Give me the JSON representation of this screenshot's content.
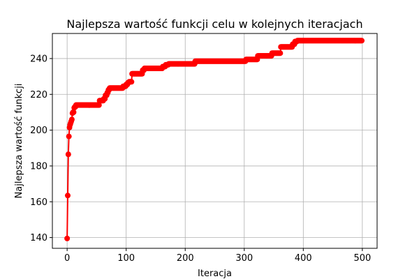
{
  "chart_data": {
    "type": "line",
    "title": "Najlepsza wartość funkcji celu w kolejnych iteracjach",
    "xlabel": "Iteracja",
    "ylabel": "Najlepsza wartość funkcji",
    "xlim": [
      -25,
      525
    ],
    "ylim": [
      134,
      254
    ],
    "xticks": [
      0,
      100,
      200,
      300,
      400,
      500
    ],
    "yticks": [
      140,
      160,
      180,
      200,
      220,
      240
    ],
    "grid": true,
    "line_color": "#ff0000",
    "marker": "circle",
    "steps": [
      [
        0,
        139.5
      ],
      [
        1,
        163.5
      ],
      [
        2,
        186.5
      ],
      [
        3,
        196.5
      ],
      [
        4,
        201.5
      ],
      [
        5,
        203.0
      ],
      [
        6,
        204.0
      ],
      [
        7,
        205.0
      ],
      [
        8,
        206.0
      ],
      [
        9,
        209.5
      ],
      [
        10,
        210.0
      ],
      [
        12,
        212.5
      ],
      [
        13,
        213.0
      ],
      [
        15,
        214.0
      ],
      [
        55,
        216.5
      ],
      [
        62,
        217.5
      ],
      [
        65,
        219.5
      ],
      [
        68,
        221.0
      ],
      [
        70,
        222.5
      ],
      [
        72,
        223.5
      ],
      [
        95,
        224.5
      ],
      [
        100,
        225.5
      ],
      [
        103,
        226.5
      ],
      [
        105,
        227.0
      ],
      [
        110,
        231.5
      ],
      [
        128,
        233.5
      ],
      [
        131,
        234.5
      ],
      [
        162,
        235.5
      ],
      [
        167,
        236.5
      ],
      [
        172,
        237.0
      ],
      [
        217,
        238.5
      ],
      [
        303,
        239.5
      ],
      [
        323,
        241.5
      ],
      [
        347,
        243.0
      ],
      [
        362,
        246.5
      ],
      [
        382,
        248.0
      ],
      [
        386,
        249.5
      ],
      [
        390,
        250.0
      ],
      [
        499,
        250.0
      ]
    ]
  }
}
